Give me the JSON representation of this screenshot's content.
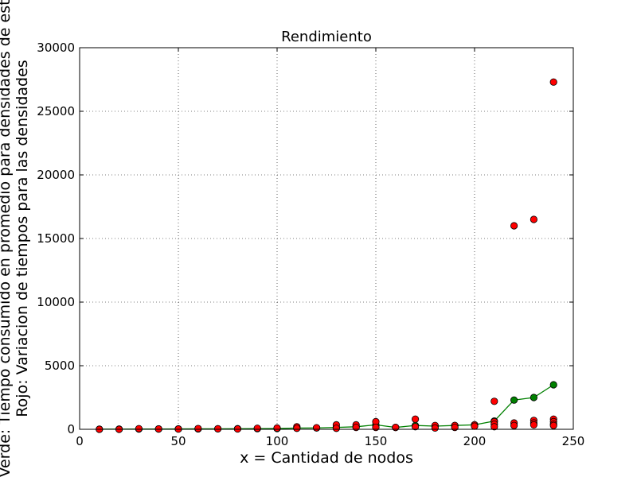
{
  "chart_data": {
    "type": "scatter",
    "title": "Rendimiento",
    "xlabel": "x = Cantidad de nodos",
    "ylabel_line1": "Verde: Tiempo consumido en promedio para densidades de est",
    "ylabel_line2": "Rojo: Variacion de tiempos para las densidades",
    "xlim": [
      0,
      250
    ],
    "ylim": [
      0,
      30000
    ],
    "x_ticks": [
      0,
      50,
      100,
      150,
      200,
      250
    ],
    "y_ticks": [
      0,
      5000,
      10000,
      15000,
      20000,
      25000,
      30000
    ],
    "x_tick_labels": [
      "0",
      "50",
      "100",
      "150",
      "200",
      "250"
    ],
    "y_tick_labels": [
      "0",
      "5000",
      "10000",
      "15000",
      "20000",
      "25000",
      "30000"
    ],
    "grid": true,
    "series": [
      {
        "color": "#008000",
        "style": "line-markers",
        "x": [
          10,
          20,
          30,
          40,
          50,
          60,
          70,
          80,
          90,
          100,
          110,
          120,
          130,
          140,
          150,
          160,
          170,
          180,
          190,
          200,
          210,
          220,
          230,
          240
        ],
        "y": [
          10,
          15,
          20,
          25,
          30,
          35,
          40,
          45,
          50,
          60,
          100,
          110,
          150,
          200,
          350,
          150,
          300,
          250,
          300,
          350,
          650,
          2300,
          2500,
          3500
        ]
      },
      {
        "color": "#ff0000",
        "style": "markers",
        "x": [
          10,
          20,
          30,
          40,
          50,
          60,
          70,
          80,
          90,
          100,
          110,
          110,
          120,
          130,
          130,
          140,
          140,
          150,
          150,
          160,
          170,
          170,
          180,
          180,
          190,
          190,
          200,
          200,
          210,
          210,
          210,
          210,
          220,
          220,
          220,
          230,
          230,
          230,
          230,
          240,
          240,
          240,
          240,
          240
        ],
        "y": [
          0,
          0,
          50,
          30,
          20,
          60,
          40,
          30,
          80,
          100,
          200,
          80,
          120,
          350,
          80,
          350,
          150,
          600,
          150,
          150,
          800,
          200,
          300,
          100,
          300,
          150,
          350,
          250,
          2200,
          600,
          400,
          200,
          16000,
          500,
          300,
          16500,
          700,
          500,
          350,
          27300,
          800,
          600,
          400,
          300
        ]
      }
    ]
  }
}
